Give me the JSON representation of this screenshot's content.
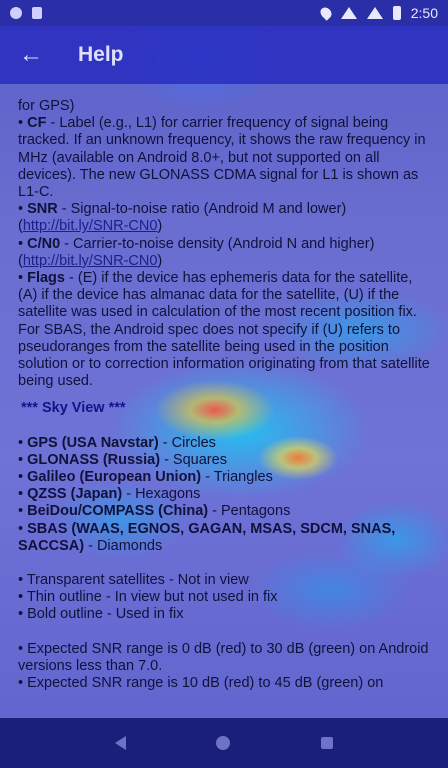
{
  "status_bar": {
    "time": "2:50"
  },
  "app_bar": {
    "title": "Help",
    "back_icon": "←"
  },
  "content": {
    "l0": "for GPS)",
    "cf_label": "CF",
    "cf_text": " - Label (e.g., L1) for carrier frequency of signal being tracked. If an unknown frequency, it shows the raw frequency in MHz (available on Android 8.0+, but not supported on all devices). The new GLONASS CDMA signal for L1 is shown as L1-C.",
    "snr_label": "SNR",
    "snr_text": " - Signal-to-noise ratio (Android M and lower)",
    "snr_link": "http://bit.ly/SNR-CN0",
    "cn0_label": "C/N0",
    "cn0_text": " - Carrier-to-noise density (Android N and higher)",
    "cn0_link": "http://bit.ly/SNR-CN0",
    "flags_label": "Flags",
    "flags_text": " - (E) if the device has ephemeris data for the satellite, (A) if the device has almanac data for the satellite, (U) if the satellite was used in calculation of the most recent position fix. For SBAS, the Android spec does not specify if (U) refers to pseudoranges from the satellite being used in the position solution or to correction information originating from that satellite being used.",
    "sky_heading": "*** Sky View ***",
    "gps_label": "GPS (USA Navstar)",
    "gps_text": " - Circles",
    "glonass_label": "GLONASS (Russia)",
    "glonass_text": " - Squares",
    "galileo_label": "Galileo (European Union)",
    "galileo_text": " - Triangles",
    "qzss_label": "QZSS (Japan)",
    "qzss_text": " - Hexagons",
    "beidou_label": "BeiDou/COMPASS (China)",
    "beidou_text": " - Pentagons",
    "sbas_label": "SBAS (WAAS, EGNOS, GAGAN, MSAS, SDCM, SNAS, SACCSA)",
    "sbas_text": " - Diamonds",
    "transparent": "Transparent satellites - Not in view",
    "thin": "Thin outline - In view but not used in fix",
    "bold": "Bold outline - Used in fix",
    "snr_range_1": "Expected SNR range is 0 dB (red) to 30 dB (green) on Android versions less than 7.0.",
    "snr_range_2": "Expected SNR range is 10 dB (red) to 45 dB (green) on"
  }
}
